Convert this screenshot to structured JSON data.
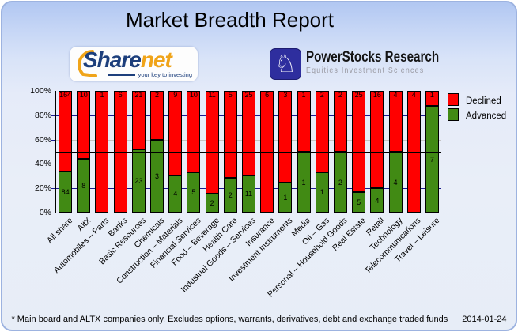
{
  "title": "Market Breadth Report",
  "logos": {
    "sharenet": {
      "text_share": "Share",
      "text_net": "net",
      "tagline": "your key to investing"
    },
    "powerstocks": {
      "knight_glyph": "♘",
      "line1": "PowerStocks  Research",
      "line2": "Equities Investment Sciences"
    }
  },
  "chart_data": {
    "type": "bar",
    "stacked": true,
    "stack_mode": "percent",
    "categories": [
      "All share",
      "AltX",
      "Automobiles – Parts",
      "Banks",
      "Basic Resources",
      "Chemicals",
      "Construction – Materials",
      "Financial Services",
      "Food – Beverage",
      "Health Care",
      "Industrial Goods – Services",
      "Insurance",
      "Investment Instruments",
      "Media",
      "Oil – Gas",
      "Personal – Household Goods",
      "Real Estate",
      "Retail",
      "Technology",
      "Telecommunications",
      "Travel – Leisure"
    ],
    "series": [
      {
        "name": "Declined",
        "color": "#ff0000",
        "values": [
          164,
          10,
          1,
          6,
          21,
          2,
          9,
          10,
          11,
          5,
          25,
          6,
          3,
          1,
          2,
          2,
          25,
          16,
          4,
          4,
          1
        ]
      },
      {
        "name": "Advanced",
        "color": "#418a14",
        "values": [
          84,
          8,
          0,
          0,
          23,
          3,
          4,
          5,
          2,
          2,
          11,
          0,
          1,
          1,
          1,
          2,
          5,
          4,
          4,
          0,
          7
        ]
      }
    ],
    "ylim": [
      0,
      100
    ],
    "y_ticks": [
      "100%",
      "80%",
      "60%",
      "40%",
      "20%",
      "0%"
    ],
    "gridlines": [
      {
        "pct": 80,
        "color": "#1a1a90",
        "on_top": false
      },
      {
        "pct": 60,
        "color": "#c4c4c4",
        "on_top": false
      },
      {
        "pct": 40,
        "color": "#c4c4c4",
        "on_top": false
      },
      {
        "pct": 20,
        "color": "#1a1a90",
        "on_top": false
      },
      {
        "pct": 50,
        "color": "#000000",
        "on_top": true
      }
    ],
    "legend_position": "right-top",
    "axis_color": "#000000",
    "tick_color": "#1a1a90"
  },
  "footer": {
    "note": "* Main board and ALTX companies only. Excludes options, warrants, derivatives, debt and exchange traded funds",
    "date": "2014-01-24"
  }
}
